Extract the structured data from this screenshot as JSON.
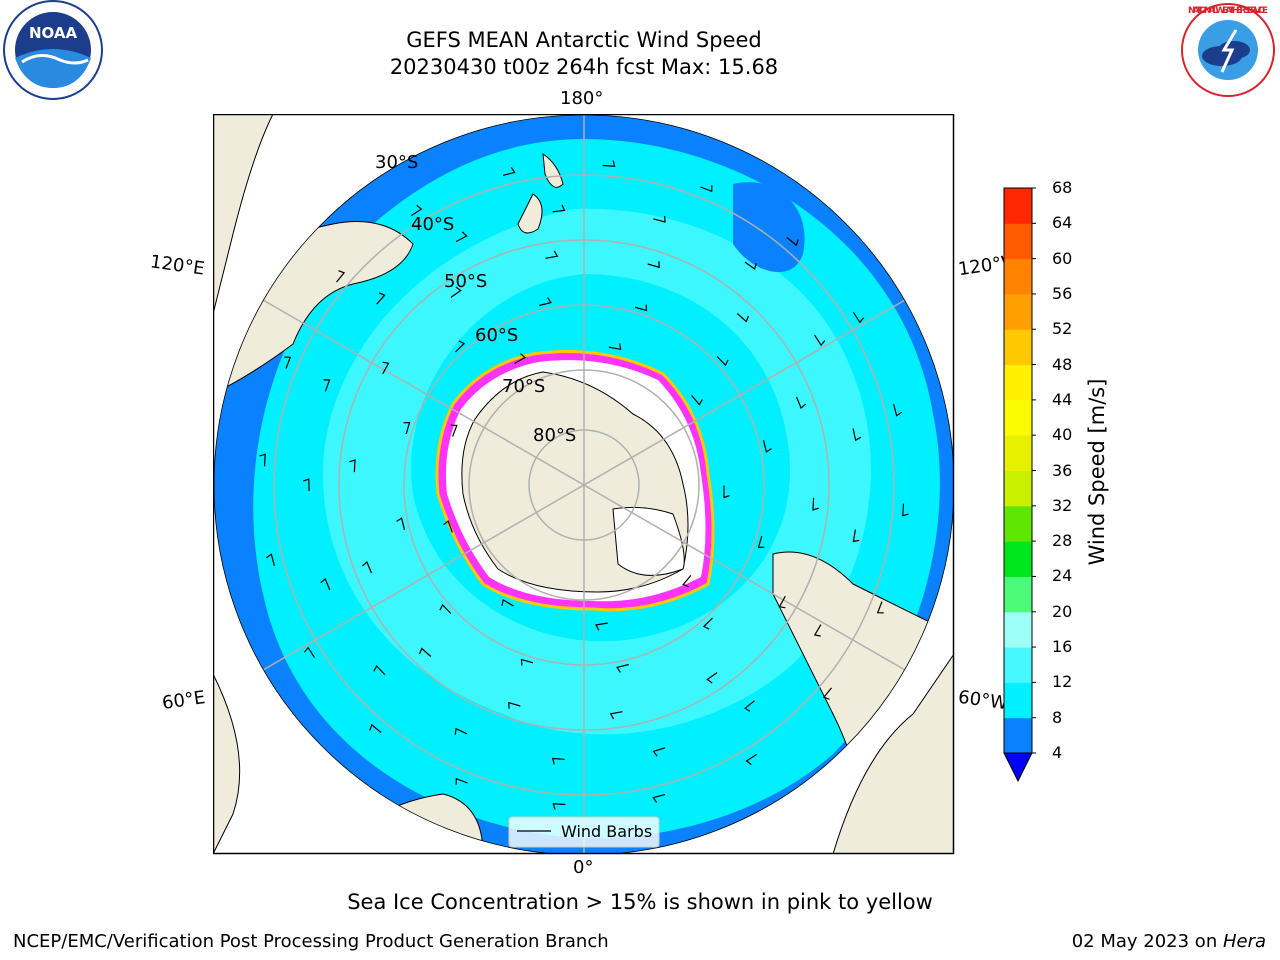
{
  "title": {
    "line1": "GEFS MEAN Antarctic Wind Speed",
    "line2": "20230430 t00z 264h fcst   Max: 15.68"
  },
  "map": {
    "projection": "south-polar-stereographic",
    "lat_labels": [
      "30°S",
      "40°S",
      "50°S",
      "60°S",
      "70°S",
      "80°S"
    ],
    "lon_labels": {
      "top": "180°",
      "bottom": "0°",
      "upper_left": "120°E",
      "lower_left": "60°E",
      "upper_right": "120°W",
      "lower_right": "60°W"
    },
    "legend_label": "Wind Barbs",
    "colors": {
      "land": "#efecdc",
      "ice_shelf": "#ffffff",
      "sea_ice_edge": "#ff33ff",
      "grid": "#b0b0b0"
    }
  },
  "colorbar": {
    "label": "Wind Speed [m/s]",
    "ticks": [
      "4",
      "8",
      "12",
      "16",
      "20",
      "24",
      "28",
      "32",
      "36",
      "40",
      "44",
      "48",
      "52",
      "56",
      "60",
      "64",
      "68"
    ],
    "levels": [
      {
        "from": 4,
        "to": 8,
        "color": "#0a82ff"
      },
      {
        "from": 8,
        "to": 12,
        "color": "#00f0ff"
      },
      {
        "from": 12,
        "to": 16,
        "color": "#48f8ff"
      },
      {
        "from": 16,
        "to": 20,
        "color": "#9efff8"
      },
      {
        "from": 20,
        "to": 24,
        "color": "#4bfa78"
      },
      {
        "from": 24,
        "to": 28,
        "color": "#00e61e"
      },
      {
        "from": 28,
        "to": 32,
        "color": "#60e600"
      },
      {
        "from": 32,
        "to": 36,
        "color": "#c8f000"
      },
      {
        "from": 36,
        "to": 40,
        "color": "#e6f000"
      },
      {
        "from": 40,
        "to": 44,
        "color": "#fafa00"
      },
      {
        "from": 44,
        "to": 48,
        "color": "#fff000"
      },
      {
        "from": 48,
        "to": 52,
        "color": "#ffc800"
      },
      {
        "from": 52,
        "to": 56,
        "color": "#ffa000"
      },
      {
        "from": 56,
        "to": 60,
        "color": "#ff8200"
      },
      {
        "from": 60,
        "to": 64,
        "color": "#ff5a00"
      },
      {
        "from": 64,
        "to": 68,
        "color": "#ff2800"
      }
    ],
    "under_color": "#0000ff"
  },
  "caption": "Sea Ice Concentration > 15% is shown in pink to yellow",
  "footer": {
    "left": "NCEP/EMC/Verification Post Processing Product Generation Branch",
    "right_date": "02 May 2023 on ",
    "right_host": "Hera"
  },
  "logos": {
    "noaa_text": "NOAA",
    "nws_text": "NATIONAL WEATHER SERVICE"
  }
}
